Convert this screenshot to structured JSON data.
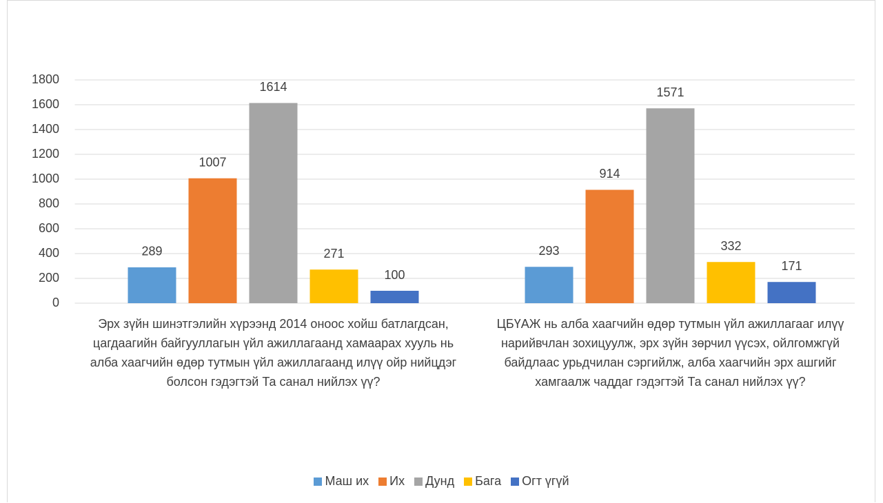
{
  "chart_data": {
    "type": "bar",
    "categories": [
      "Эрх зүйн шинэтгэлийн хүрээнд 2014 оноос хойш батлагдсан, цагдаагийн байгууллагын үйл ажиллагаанд хамаарах хууль нь алба хаагчийн өдөр тутмын үйл ажиллагаанд илүү ойр нийцдэг болсон гэдэгтэй Та санал нийлэх үү?",
      "ЦБҮАЖ нь алба хаагчийн өдөр тутмын үйл ажиллагааг илүү нарийвчлан зохицуулж, эрх зүйн зөрчил үүсэх, ойлгомжгүй байдлаас урьдчилан сэргийлж, алба хаагчийн эрх ашгийг хамгаалж чаддаг гэдэгтэй Та санал нийлэх үү?"
    ],
    "series": [
      {
        "name": "Маш их",
        "color": "#5b9bd5",
        "values": [
          289,
          293
        ]
      },
      {
        "name": "Их",
        "color": "#ed7d31",
        "values": [
          1007,
          914
        ]
      },
      {
        "name": "Дунд",
        "color": "#a5a5a5",
        "values": [
          1614,
          1571
        ]
      },
      {
        "name": "Бага",
        "color": "#ffc000",
        "values": [
          271,
          332
        ]
      },
      {
        "name": "Огт үгүй",
        "color": "#4472c4",
        "values": [
          100,
          171
        ]
      }
    ],
    "ylim": [
      0,
      1800
    ],
    "yticks": [
      0,
      200,
      400,
      600,
      800,
      1000,
      1200,
      1400,
      1600,
      1800
    ],
    "grid": true,
    "legend": "bottom"
  }
}
